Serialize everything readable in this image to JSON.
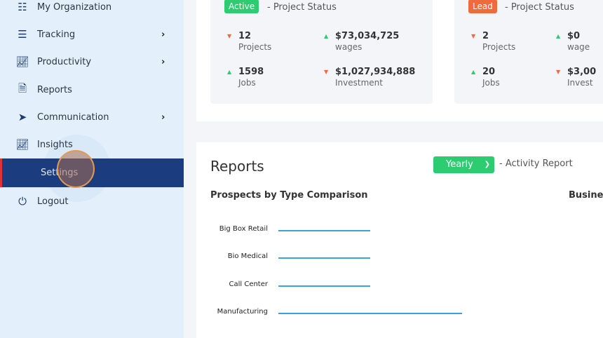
{
  "sidebar": {
    "items": [
      {
        "label": "My Organization",
        "icon": "sitemap-icon"
      },
      {
        "label": "Tracking",
        "icon": "list-icon",
        "chevron": true
      },
      {
        "label": "Productivity",
        "icon": "chart-line-icon",
        "chevron": true
      },
      {
        "label": "Reports",
        "icon": "file-icon"
      },
      {
        "label": "Communication",
        "icon": "paper-plane-icon",
        "chevron": true
      },
      {
        "label": "Insights",
        "icon": "chart-line-icon"
      },
      {
        "label": "Settings",
        "active": true
      },
      {
        "label": "Logout",
        "icon": "power-icon"
      }
    ]
  },
  "cards": [
    {
      "badge": "Active",
      "badge_color": "#2ecc71",
      "title": "- Project Status",
      "stats": [
        {
          "value": "12",
          "label": "Projects",
          "trend": "down"
        },
        {
          "value": "$73,034,725",
          "label": "wages",
          "trend": "up"
        },
        {
          "value": "1598",
          "label": "Jobs",
          "trend": "up"
        },
        {
          "value": "$1,027,934,888",
          "label": "Investment",
          "trend": "down"
        }
      ]
    },
    {
      "badge": "Lead",
      "badge_color": "#f06a40",
      "title": "- Project Status",
      "stats": [
        {
          "value": "2",
          "label": "Projects",
          "trend": "down"
        },
        {
          "value": "$0",
          "label": "wage",
          "trend": "up"
        },
        {
          "value": "20",
          "label": "Jobs",
          "trend": "up"
        },
        {
          "value": "$3,00",
          "label": "Invest",
          "trend": "down"
        }
      ]
    }
  ],
  "reports": {
    "title": "Reports",
    "period": "Yearly",
    "activity": "- Activity Report",
    "subtitle": "Prospects by Type Comparison",
    "subtitle2": "Busine"
  },
  "chart_data": {
    "type": "bar",
    "orientation": "horizontal",
    "title": "Prospects by Type Comparison",
    "categories": [
      "Big Box Retail",
      "Bio Medical",
      "Call Center",
      "Manufacturing"
    ],
    "values": [
      1,
      1,
      1,
      2
    ],
    "xlim": [
      0,
      2
    ]
  }
}
